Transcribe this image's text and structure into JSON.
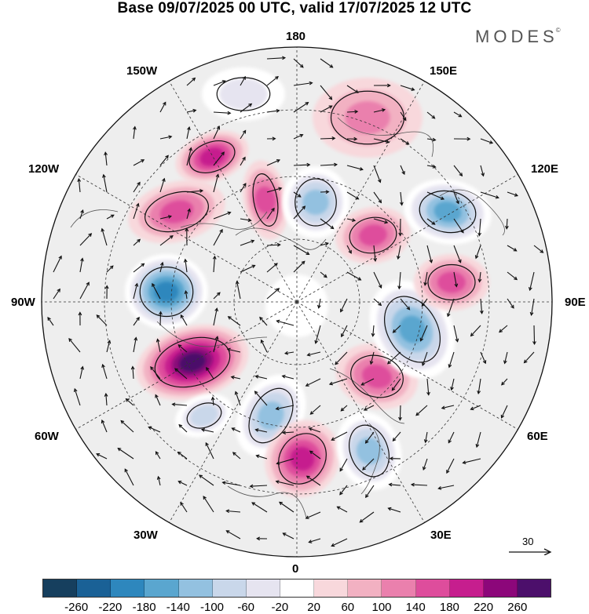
{
  "title": "Base 09/07/2025 00 UTC, valid 17/07/2025 12 UTC",
  "brand": {
    "name": "MODES",
    "mark": "©"
  },
  "longitude_labels": {
    "top": "180",
    "bottom": "0",
    "left": "90W",
    "right": "90E",
    "upper_left": "150W",
    "upper_right": "150E",
    "mid_upper_left": "120W",
    "mid_upper_right": "120E",
    "mid_lower_left": "60W",
    "mid_lower_right": "60E",
    "lower_left": "30W",
    "lower_right": "30E"
  },
  "reference_vector": {
    "label": "30"
  },
  "colorbar": {
    "colors": [
      "#163f5e",
      "#1a6196",
      "#2e87bd",
      "#5aa6cf",
      "#93c1e0",
      "#c9d7ea",
      "#e6e4f0",
      "#ffffff",
      "#f8d8dc",
      "#f2b1c2",
      "#ea80ad",
      "#de4d9c",
      "#c61e8e",
      "#8c077a",
      "#4c0f6b"
    ],
    "ticks": [
      "-260",
      "-220",
      "-180",
      "-140",
      "-100",
      "-60",
      "-20",
      "20",
      "60",
      "100",
      "140",
      "180",
      "220",
      "260"
    ]
  },
  "anomalies": [
    {
      "name": "north-pacific-high",
      "value": 90
    },
    {
      "name": "bering-low",
      "value": -60
    },
    {
      "name": "alaska-high",
      "value": 120
    },
    {
      "name": "yukon-high",
      "value": 130
    },
    {
      "name": "arctic-canada-low",
      "value": -150
    },
    {
      "name": "beaufort-high",
      "value": 140
    },
    {
      "name": "hudson-low",
      "value": -210
    },
    {
      "name": "labrador-high",
      "value": 250
    },
    {
      "name": "greenland-low",
      "value": -150
    },
    {
      "name": "atlantic-low",
      "value": -80
    },
    {
      "name": "north-atlantic-high",
      "value": 160
    },
    {
      "name": "scandinavia-low",
      "value": -150
    },
    {
      "name": "barents-high",
      "value": 130
    },
    {
      "name": "siberia-low",
      "value": -180
    },
    {
      "name": "kara-high",
      "value": 140
    },
    {
      "name": "laptev-low",
      "value": -170
    },
    {
      "name": "east-siberia-high",
      "value": 160
    }
  ]
}
